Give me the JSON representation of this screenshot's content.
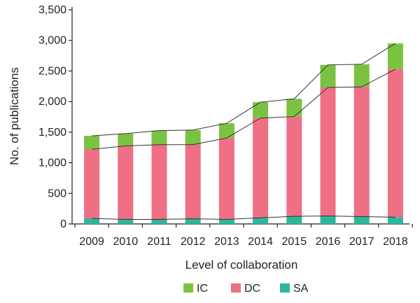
{
  "chart_data": {
    "type": "bar",
    "stacked": true,
    "title": "",
    "xlabel": "Level of collaboration",
    "ylabel": "No. of publications",
    "categories": [
      "2009",
      "2010",
      "2011",
      "2012",
      "2013",
      "2014",
      "2015",
      "2016",
      "2017",
      "2018"
    ],
    "ylim": [
      0,
      3500
    ],
    "yticks": [
      0,
      500,
      1000,
      1500,
      2000,
      2500,
      3000,
      3500
    ],
    "ytick_labels": [
      "0",
      "500",
      "1,000",
      "1,500",
      "2,000",
      "2,500",
      "3,000",
      "3,500"
    ],
    "grid": false,
    "legend_position": "bottom",
    "series": [
      {
        "name": "SA",
        "color": "#2bb89a",
        "values": [
          90,
          75,
          75,
          85,
          75,
          100,
          125,
          130,
          120,
          110
        ]
      },
      {
        "name": "DC",
        "color": "#ef6f85",
        "values": [
          1130,
          1200,
          1220,
          1210,
          1330,
          1630,
          1630,
          2100,
          2120,
          2420
        ]
      },
      {
        "name": "IC",
        "color": "#7cc242",
        "values": [
          220,
          200,
          230,
          240,
          240,
          260,
          290,
          370,
          370,
          420
        ]
      }
    ],
    "legend": [
      "IC",
      "DC",
      "SA"
    ],
    "trend_lines": [
      "SA",
      "DC"
    ],
    "trend_line_color": "#333333"
  }
}
